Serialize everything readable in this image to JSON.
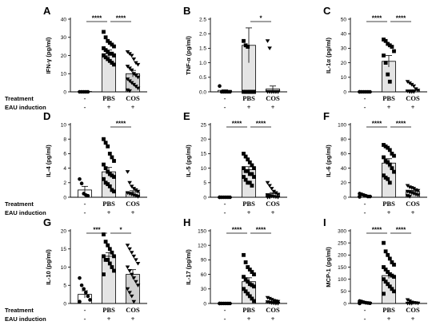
{
  "figure": {
    "row_labels": {
      "treatment": "Treatment",
      "eau": "EAU induction"
    },
    "categories": [
      "",
      "PBS",
      "COS"
    ],
    "treatment_marks": [
      "-",
      "",
      ""
    ],
    "eau_marks": [
      "-",
      "+",
      "+"
    ]
  },
  "chart_data": [
    {
      "type": "bar",
      "panel": "A",
      "ylabel": "IFN-γ (pg/ml)",
      "ylim": [
        0,
        40
      ],
      "yticks": [
        0,
        10,
        20,
        30,
        40
      ],
      "categories": [
        "-",
        "PBS",
        "COS"
      ],
      "means": [
        0.2,
        21,
        10
      ],
      "sem": [
        0.1,
        2,
        1.8
      ],
      "bar_colors": [
        "#ffffff",
        "#e4e4e4",
        "#d0d0d0"
      ],
      "points": [
        [
          0,
          0,
          0,
          0,
          0
        ],
        [
          33,
          30,
          28,
          27,
          26,
          25,
          24,
          23,
          22,
          21,
          21,
          20,
          20,
          19,
          18,
          17,
          16,
          15
        ],
        [
          22,
          21,
          20,
          18,
          16,
          15,
          14,
          13,
          12,
          10,
          9,
          8,
          7,
          6,
          5,
          4,
          3,
          2,
          1,
          0.5
        ]
      ],
      "markers": [
        "circle",
        "square",
        "triangle-down"
      ],
      "significance": [
        {
          "from": 0,
          "to": 1,
          "label": "****"
        },
        {
          "from": 1,
          "to": 2,
          "label": "****"
        }
      ]
    },
    {
      "type": "bar",
      "panel": "B",
      "ylabel": "TNF-α (pg/ml)",
      "ylim": [
        0,
        2.5
      ],
      "yticks": [
        0.0,
        0.5,
        1.0,
        1.5,
        2.0,
        2.5
      ],
      "tick_format": "1dp",
      "categories": [
        "-",
        "PBS",
        "COS"
      ],
      "means": [
        0.05,
        1.6,
        0.1
      ],
      "sem": [
        0.02,
        0.6,
        0.1
      ],
      "bar_colors": [
        "#ffffff",
        "#e4e4e4",
        "#d0d0d0"
      ],
      "points": [
        [
          0.2,
          0,
          0,
          0,
          0,
          0
        ],
        [
          1.75,
          1.6,
          1.55,
          0,
          0,
          0,
          0,
          0,
          0,
          0,
          0,
          0
        ],
        [
          1.75,
          1.5,
          0,
          0,
          0,
          0,
          0,
          0,
          0,
          0,
          0,
          0
        ]
      ],
      "markers": [
        "circle",
        "square",
        "triangle-down"
      ],
      "significance": [
        {
          "from": 1,
          "to": 2,
          "label": "*"
        }
      ]
    },
    {
      "type": "bar",
      "panel": "C",
      "ylabel": "IL-1α (pg/ml)",
      "ylim": [
        0,
        50
      ],
      "yticks": [
        0,
        10,
        20,
        30,
        40,
        50
      ],
      "categories": [
        "-",
        "PBS",
        "COS"
      ],
      "means": [
        0,
        21,
        1
      ],
      "sem": [
        0,
        4,
        0.5
      ],
      "bar_colors": [
        "#ffffff",
        "#e4e4e4",
        "#d0d0d0"
      ],
      "points": [
        [
          0,
          0,
          0,
          0,
          0,
          0,
          0
        ],
        [
          36,
          35,
          33,
          32,
          31,
          28,
          25,
          20,
          12,
          7
        ],
        [
          7,
          6,
          5,
          4,
          2,
          1,
          0.5,
          0,
          0,
          0
        ]
      ],
      "markers": [
        "circle",
        "square",
        "triangle-down"
      ],
      "significance": [
        {
          "from": 0,
          "to": 1,
          "label": "****"
        },
        {
          "from": 1,
          "to": 2,
          "label": "****"
        }
      ]
    },
    {
      "type": "bar",
      "panel": "D",
      "ylabel": "IL-4 (pg/ml)",
      "ylim": [
        0,
        10
      ],
      "yticks": [
        0,
        2,
        4,
        6,
        8,
        10
      ],
      "categories": [
        "-",
        "PBS",
        "COS"
      ],
      "means": [
        1,
        3.5,
        0.7
      ],
      "sem": [
        0.5,
        0.6,
        0.2
      ],
      "bar_colors": [
        "#ffffff",
        "#e4e4e4",
        "#d0d0d0"
      ],
      "points": [
        [
          2.5,
          1.9,
          0.5,
          0.3,
          0.2
        ],
        [
          8,
          7.5,
          7,
          6,
          5.5,
          5,
          4.5,
          4,
          3.5,
          3.2,
          3,
          2.8,
          2.5,
          2,
          1.8,
          1.5,
          1,
          0.8
        ],
        [
          3.5,
          2,
          1.5,
          1.2,
          1,
          0.8,
          0.6,
          0.5,
          0.4,
          0.3,
          0.2,
          0.1
        ]
      ],
      "markers": [
        "circle",
        "square",
        "triangle-down"
      ],
      "significance": [
        {
          "from": 1,
          "to": 2,
          "label": "****"
        }
      ]
    },
    {
      "type": "bar",
      "panel": "E",
      "ylabel": "IL-5 (pg/ml)",
      "ylim": [
        0,
        25
      ],
      "yticks": [
        0,
        5,
        10,
        15,
        20,
        25
      ],
      "categories": [
        "-",
        "PBS",
        "COS"
      ],
      "means": [
        0,
        9.5,
        1.2
      ],
      "sem": [
        0,
        1,
        0.4
      ],
      "bar_colors": [
        "#ffffff",
        "#e4e4e4",
        "#d0d0d0"
      ],
      "points": [
        [
          0,
          0,
          0,
          0,
          0,
          0,
          0
        ],
        [
          15,
          14,
          13,
          12,
          11,
          10,
          10,
          9,
          9,
          8,
          8,
          7,
          7,
          6,
          5,
          5,
          4
        ],
        [
          5,
          4,
          3,
          2,
          1.5,
          1,
          0.8,
          0.5,
          0.3,
          0.2,
          0.1,
          0,
          0,
          0
        ]
      ],
      "markers": [
        "circle",
        "square",
        "triangle-down"
      ],
      "significance": [
        {
          "from": 0,
          "to": 1,
          "label": "****"
        },
        {
          "from": 1,
          "to": 2,
          "label": "****"
        }
      ]
    },
    {
      "type": "bar",
      "panel": "F",
      "ylabel": "IL-6 (pg/ml)",
      "ylim": [
        0,
        100
      ],
      "yticks": [
        0,
        20,
        40,
        60,
        80,
        100
      ],
      "categories": [
        "-",
        "PBS",
        "COS"
      ],
      "means": [
        2,
        47,
        8
      ],
      "sem": [
        1,
        6,
        1.5
      ],
      "bar_colors": [
        "#ffffff",
        "#e4e4e4",
        "#d0d0d0"
      ],
      "points": [
        [
          5,
          4,
          3,
          2,
          1,
          1,
          0.5
        ],
        [
          72,
          70,
          68,
          65,
          60,
          57,
          55,
          50,
          48,
          45,
          40,
          35,
          30,
          27,
          25,
          20
        ],
        [
          16,
          14,
          13,
          12,
          10,
          9,
          8,
          7,
          6,
          5,
          4,
          3,
          2,
          1
        ]
      ],
      "markers": [
        "circle",
        "square",
        "triangle-down"
      ],
      "significance": [
        {
          "from": 0,
          "to": 1,
          "label": "****"
        },
        {
          "from": 1,
          "to": 2,
          "label": "****"
        }
      ]
    },
    {
      "type": "bar",
      "panel": "G",
      "ylabel": "IL-10 (pg/ml)",
      "ylim": [
        0,
        20
      ],
      "yticks": [
        0,
        5,
        10,
        15,
        20
      ],
      "categories": [
        "-",
        "PBS",
        "COS"
      ],
      "means": [
        2.5,
        13,
        8
      ],
      "sem": [
        1,
        1,
        1.3
      ],
      "bar_colors": [
        "#ffffff",
        "#e4e4e4",
        "#d0d0d0"
      ],
      "points": [
        [
          7,
          5,
          4,
          3,
          2,
          1,
          0.5
        ],
        [
          19,
          17,
          16,
          15,
          14,
          13,
          13,
          12,
          12,
          11,
          10,
          9,
          8
        ],
        [
          16,
          15,
          14,
          13,
          12,
          11,
          10,
          9,
          8,
          7,
          6,
          5,
          4,
          3,
          2,
          0.5
        ]
      ],
      "markers": [
        "circle",
        "square",
        "triangle-down"
      ],
      "significance": [
        {
          "from": 0,
          "to": 1,
          "label": "***"
        },
        {
          "from": 1,
          "to": 2,
          "label": "*"
        }
      ]
    },
    {
      "type": "bar",
      "panel": "H",
      "ylabel": "IL-17 (pg/ml)",
      "ylim": [
        0,
        150
      ],
      "yticks": [
        0,
        30,
        60,
        90,
        120,
        150
      ],
      "categories": [
        "-",
        "PBS",
        "COS"
      ],
      "means": [
        0,
        45,
        3
      ],
      "sem": [
        0,
        8,
        1
      ],
      "bar_colors": [
        "#ffffff",
        "#e4e4e4",
        "#d0d0d0"
      ],
      "points": [
        [
          0,
          0,
          0,
          0,
          0,
          0,
          0
        ],
        [
          100,
          85,
          75,
          70,
          65,
          60,
          55,
          50,
          45,
          40,
          38,
          35,
          30,
          25,
          20,
          15,
          10,
          5
        ],
        [
          12,
          10,
          8,
          6,
          5,
          4,
          3,
          2,
          1,
          0.5,
          0,
          0
        ]
      ],
      "markers": [
        "circle",
        "square",
        "triangle-down"
      ],
      "significance": [
        {
          "from": 0,
          "to": 1,
          "label": "****"
        },
        {
          "from": 1,
          "to": 2,
          "label": "****"
        }
      ]
    },
    {
      "type": "bar",
      "panel": "I",
      "ylabel": "MCP-1 (pg/ml)",
      "ylim": [
        0,
        300
      ],
      "yticks": [
        0,
        50,
        100,
        150,
        200,
        250,
        300
      ],
      "categories": [
        "-",
        "PBS",
        "COS"
      ],
      "means": [
        5,
        115,
        2
      ],
      "sem": [
        2,
        12,
        1
      ],
      "bar_colors": [
        "#ffffff",
        "#e4e4e4",
        "#d0d0d0"
      ],
      "points": [
        [
          10,
          8,
          5,
          3,
          2,
          1,
          0
        ],
        [
          250,
          215,
          200,
          185,
          170,
          160,
          150,
          140,
          130,
          120,
          115,
          110,
          100,
          90,
          80,
          70,
          60,
          50,
          40
        ],
        [
          15,
          10,
          5,
          3,
          2,
          1,
          0.5,
          0,
          0
        ]
      ],
      "markers": [
        "circle",
        "square",
        "triangle-down"
      ],
      "significance": [
        {
          "from": 0,
          "to": 1,
          "label": "****"
        },
        {
          "from": 1,
          "to": 2,
          "label": "****"
        }
      ]
    }
  ]
}
